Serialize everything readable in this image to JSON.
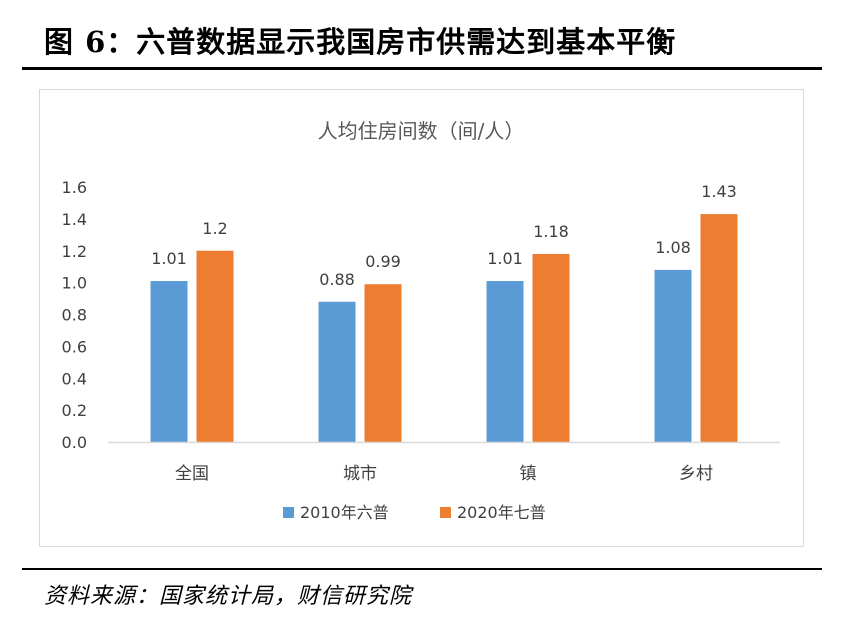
{
  "figure": {
    "title": "图 6：六普数据显示我国房市供需达到基本平衡",
    "source": "资料来源：国家统计局，财信研究院"
  },
  "chart_data": {
    "type": "bar",
    "title": "人均住房间数（间/人）",
    "categories": [
      "全国",
      "城市",
      "镇",
      "乡村"
    ],
    "series": [
      {
        "name": "2010年六普",
        "values": [
          1.01,
          0.88,
          1.01,
          1.08
        ],
        "labels": [
          "1.01",
          "0.88",
          "1.01",
          "1.08"
        ],
        "color": "#5b9bd5"
      },
      {
        "name": "2020年七普",
        "values": [
          1.2,
          0.99,
          1.18,
          1.43
        ],
        "labels": [
          "1.2",
          "0.99",
          "1.18",
          "1.43"
        ],
        "color": "#ed7d31"
      }
    ],
    "ylim": [
      0,
      1.6
    ],
    "yticks": [
      "0.0",
      "0.2",
      "0.4",
      "0.6",
      "0.8",
      "1.0",
      "1.2",
      "1.4",
      "1.6"
    ],
    "grid": false,
    "legend_position": "bottom",
    "axis_color": "#d9d9d9",
    "text_color": "#404040"
  }
}
